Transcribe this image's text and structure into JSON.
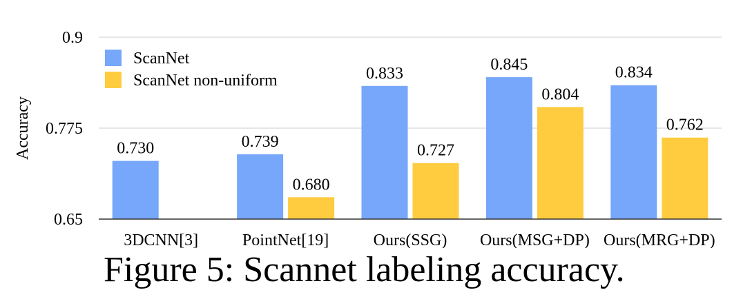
{
  "chart_data": {
    "type": "bar",
    "categories": [
      "3DCNN[3]",
      "PointNet[19]",
      "Ours(SSG)",
      "Ours(MSG+DP)",
      "Ours(MRG+DP)"
    ],
    "series": [
      {
        "name": "ScanNet",
        "color": "#76A7FA",
        "values": [
          0.73,
          0.739,
          0.833,
          0.845,
          0.834
        ]
      },
      {
        "name": "ScanNet non-uniform",
        "color": "#FFCC3F",
        "values": [
          null,
          0.68,
          0.727,
          0.804,
          0.762
        ]
      }
    ],
    "value_labels": [
      [
        "0.730",
        "0.739",
        "0.833",
        "0.845",
        "0.834"
      ],
      [
        null,
        "0.680",
        "0.727",
        "0.804",
        "0.762"
      ]
    ],
    "ylabel": "Accuracy",
    "xlabel": "",
    "ylim": [
      0.65,
      0.9
    ],
    "yticks": [
      0.65,
      0.775,
      0.9
    ],
    "ytick_labels": [
      "0.65",
      "0.775",
      "0.9"
    ],
    "grid": "horizontal",
    "legend_position": "top-left"
  },
  "caption": "Figure 5: Scannet labeling accuracy."
}
